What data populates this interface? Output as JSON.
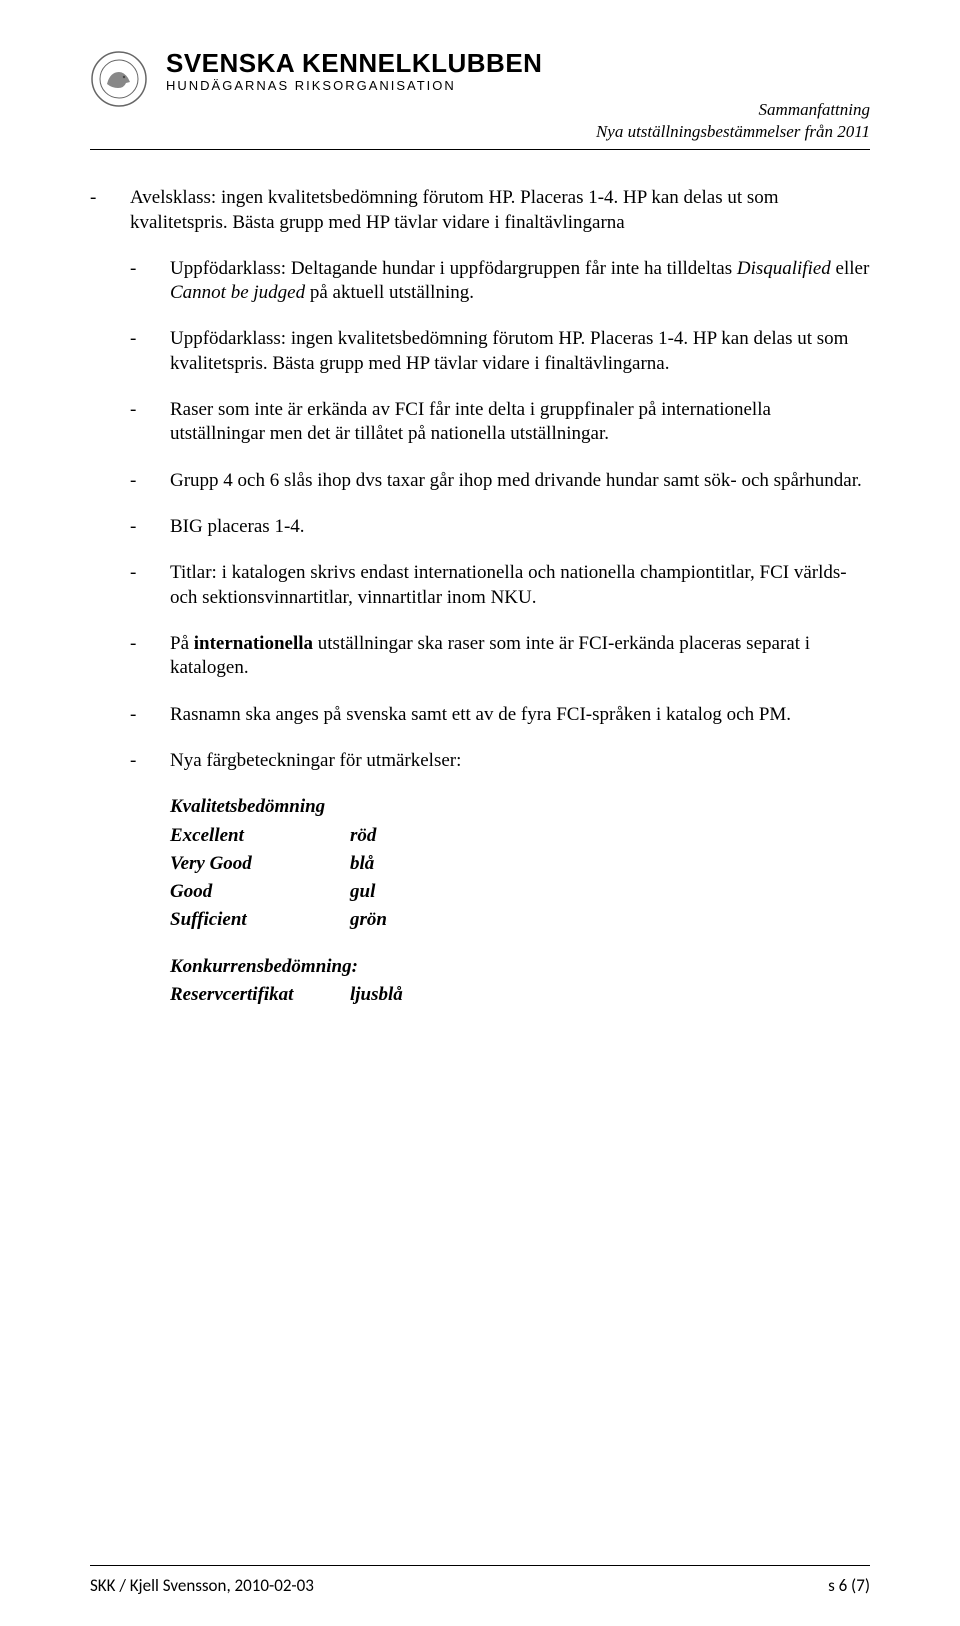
{
  "header": {
    "org_title": "SVENSKA KENNELKLUBBEN",
    "org_subtitle": "HUNDÄGARNAS RIKSORGANISATION",
    "doc_meta_line1": "Sammanfattning",
    "doc_meta_line2": "Nya utställningsbestämmelser från 2011"
  },
  "bullets": {
    "b1": "Avelsklass: ingen kvalitetsbedömning förutom HP. Placeras 1-4. HP kan delas ut som kvalitetspris. Bästa grupp med HP tävlar vidare i finaltävlingarna",
    "b1a_prefix": "Uppfödarklass: Deltagande hundar i uppfödargruppen får inte ha tilldeltas ",
    "b1a_i1": "Disqualified",
    "b1a_mid": " eller ",
    "b1a_i2": "Cannot be judged",
    "b1a_suffix": " på aktuell utställning.",
    "b1b": "Uppfödarklass: ingen kvalitetsbedömning förutom HP. Placeras 1-4. HP kan delas ut som kvalitetspris. Bästa grupp med HP tävlar vidare i finaltävlingarna.",
    "b1c": "Raser som inte är erkända av FCI får inte delta i gruppfinaler på internationella utställningar men det är tillåtet på nationella utställningar.",
    "b1d": "Grupp 4 och 6 slås ihop dvs taxar går ihop med drivande hundar samt sök- och spårhundar.",
    "b1e": "BIG placeras 1-4.",
    "b1f": "Titlar: i katalogen skrivs endast internationella och nationella championtitlar, FCI världs- och sektionsvinnartitlar, vinnartitlar inom NKU.",
    "b1g_prefix": "På ",
    "b1g_bold": "internationella",
    "b1g_suffix": " utställningar ska raser som inte är FCI-erkända placeras separat i katalogen.",
    "b1h": "Rasnamn ska anges på svenska samt ett av de fyra FCI-språken i katalog och PM.",
    "b1i": "Nya färgbeteckningar för utmärkelser:"
  },
  "quality_section": "Kvalitetsbedömning",
  "quality_rows": [
    {
      "label": "Excellent",
      "value": "röd"
    },
    {
      "label": "Very Good",
      "value": "blå"
    },
    {
      "label": "Good",
      "value": "gul"
    },
    {
      "label": "Sufficient",
      "value": "grön"
    }
  ],
  "comp_section": "Konkurrensbedömning:",
  "comp_rows": [
    {
      "label": "Reservcertifikat",
      "value": "ljusblå"
    }
  ],
  "footer": {
    "left": "SKK / Kjell Svensson, 2010-02-03",
    "right": "s 6 (7)"
  }
}
